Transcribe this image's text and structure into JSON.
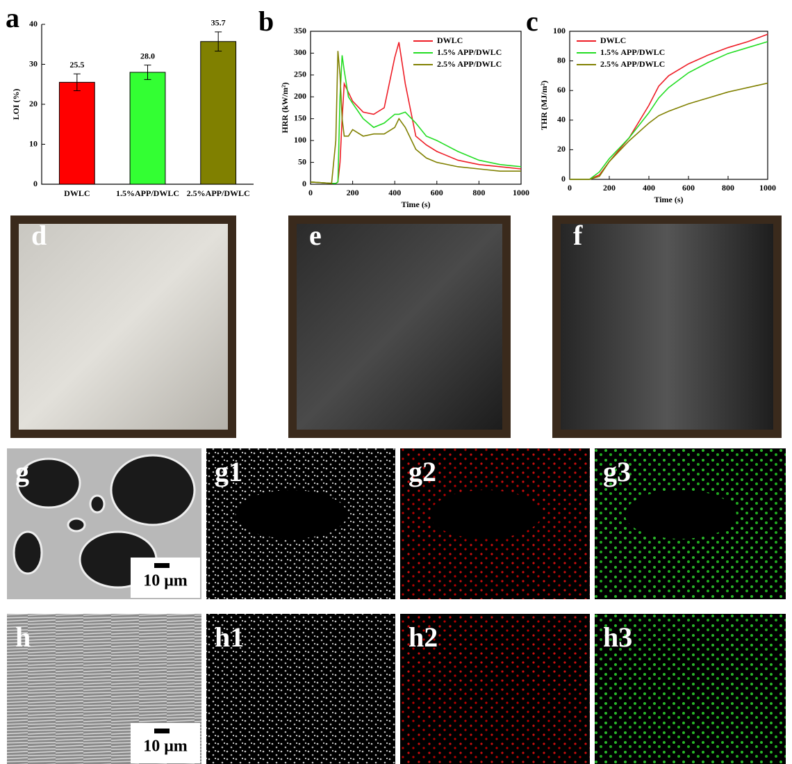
{
  "chart_data": [
    {
      "type": "bar",
      "panel": "a",
      "ylabel": "LOI (%)",
      "categories": [
        "DWLC",
        "1.5%APP/DWLC",
        "2.5%APP/DWLC"
      ],
      "values": [
        25.5,
        28.0,
        35.7
      ],
      "value_labels": [
        "25.5",
        "28.0",
        "35.7"
      ],
      "errors": [
        2.1,
        1.8,
        2.4
      ],
      "colors": [
        "#ff0000",
        "#33ff33",
        "#808000"
      ],
      "ylim": [
        0,
        40
      ],
      "yticks": [
        0,
        10,
        20,
        30,
        40
      ]
    },
    {
      "type": "line",
      "panel": "b",
      "xlabel": "Time (s)",
      "ylabel": "HRR (kW/m²)",
      "legend": "upper right",
      "x": [
        0,
        100,
        120,
        130,
        140,
        150,
        160,
        180,
        200,
        250,
        300,
        350,
        400,
        420,
        450,
        500,
        550,
        600,
        700,
        800,
        900,
        1000
      ],
      "series": [
        {
          "name": "DWLC",
          "color": "#ee1c25",
          "values": [
            5,
            2,
            2,
            5,
            50,
            150,
            230,
            210,
            190,
            165,
            160,
            175,
            290,
            325,
            230,
            110,
            90,
            75,
            55,
            45,
            40,
            35
          ]
        },
        {
          "name": "1.5% APP/DWLC",
          "color": "#22dd22",
          "values": [
            5,
            2,
            2,
            5,
            200,
            295,
            260,
            200,
            185,
            150,
            130,
            140,
            160,
            160,
            165,
            140,
            110,
            100,
            75,
            55,
            45,
            40
          ]
        },
        {
          "name": "2.5% APP/DWLC",
          "color": "#808000",
          "values": [
            5,
            2,
            100,
            305,
            250,
            150,
            110,
            110,
            125,
            110,
            115,
            115,
            130,
            150,
            130,
            80,
            60,
            50,
            40,
            35,
            30,
            30
          ]
        }
      ],
      "xlim": [
        0,
        1000
      ],
      "xticks": [
        0,
        200,
        400,
        600,
        800,
        1000
      ],
      "ylim": [
        0,
        350
      ],
      "yticks": [
        0,
        50,
        100,
        150,
        200,
        250,
        300,
        350
      ]
    },
    {
      "type": "line",
      "panel": "c",
      "xlabel": "Time (s)",
      "ylabel": "THR (MJ/m²)",
      "legend": "upper left",
      "x": [
        0,
        100,
        150,
        200,
        300,
        400,
        450,
        500,
        600,
        700,
        800,
        900,
        1000
      ],
      "series": [
        {
          "name": "DWLC",
          "color": "#ee1c25",
          "values": [
            0,
            0,
            3,
            12,
            28,
            50,
            63,
            70,
            78,
            84,
            89,
            93,
            98
          ]
        },
        {
          "name": "1.5% APP/DWLC",
          "color": "#22dd22",
          "values": [
            0,
            0,
            5,
            14,
            28,
            45,
            55,
            62,
            72,
            79,
            85,
            89,
            93
          ]
        },
        {
          "name": "2.5% APP/DWLC",
          "color": "#808000",
          "values": [
            0,
            0,
            2,
            12,
            26,
            38,
            43,
            46,
            51,
            55,
            59,
            62,
            65
          ]
        }
      ],
      "xlim": [
        0,
        1000
      ],
      "xticks": [
        0,
        200,
        400,
        600,
        800,
        1000
      ],
      "ylim": [
        0,
        100
      ],
      "yticks": [
        0,
        20,
        40,
        60,
        80,
        100
      ]
    }
  ],
  "photos": [
    "d",
    "e",
    "f"
  ],
  "sem_rows": [
    {
      "panels": [
        "g",
        "g1",
        "g2",
        "g3"
      ],
      "scale_bar": "10 μm"
    },
    {
      "panels": [
        "h",
        "h1",
        "h2",
        "h3"
      ],
      "scale_bar": "10 μm"
    }
  ]
}
